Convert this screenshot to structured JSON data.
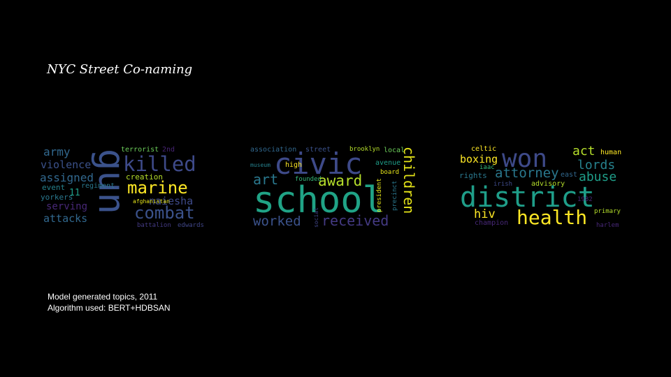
{
  "slide": {
    "title": "NYC Street Co-naming",
    "caption_line1": "Model generated topics, 2011",
    "caption_line2": "Algorithm used: BERT+HDBSAN"
  },
  "clouds": [
    {
      "words": [
        "army",
        "terrorist",
        "2nd",
        "violence",
        "killed",
        "gun",
        "assigned",
        "creation",
        "marine",
        "event",
        "regiment",
        "11",
        "naiesha",
        "yorkers",
        "afghanistan",
        "serving",
        "combat",
        "attacks",
        "battalion",
        "edwards"
      ]
    },
    {
      "words": [
        "association",
        "street",
        "brooklyn",
        "local",
        "civic",
        "high",
        "museum",
        "avenue",
        "art",
        "founded",
        "award",
        "board",
        "children",
        "school",
        "president",
        "precinct",
        "worked",
        "social",
        "received"
      ]
    },
    {
      "words": [
        "celtic",
        "won",
        "act",
        "human",
        "boxing",
        "iaac",
        "lords",
        "attorney",
        "rights",
        "east",
        "abuse",
        "irish",
        "advisory",
        "district",
        "1982",
        "hiv",
        "health",
        "primary",
        "champion",
        "harlem"
      ]
    }
  ],
  "colors": {
    "background": "#000000",
    "text": "#ffffff"
  }
}
